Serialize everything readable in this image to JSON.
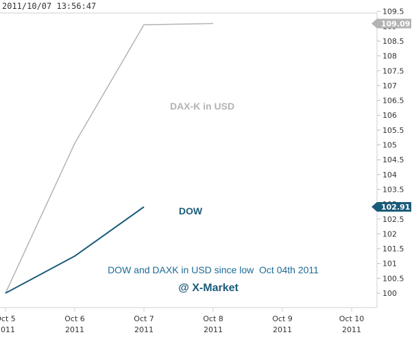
{
  "timestamp": "2011/10/07 13:56:47",
  "chart_data": {
    "type": "line",
    "x": [
      "2011-10-05",
      "2011-10-06",
      "2011-10-07",
      "2011-10-08",
      "2011-10-09",
      "2011-10-10"
    ],
    "x_tick_labels": [
      {
        "date": "2011-10-05",
        "label": "Oct 5",
        "year": "2011"
      },
      {
        "date": "2011-10-06",
        "label": "Oct 6",
        "year": "2011"
      },
      {
        "date": "2011-10-07",
        "label": "Oct 7",
        "year": "2011"
      },
      {
        "date": "2011-10-08",
        "label": "Oct 8",
        "year": "2011"
      },
      {
        "date": "2011-10-09",
        "label": "Oct 9",
        "year": "2011"
      },
      {
        "date": "2011-10-10",
        "label": "Oct 10",
        "year": "2011"
      }
    ],
    "y_ticks": [
      "109.5",
      "109",
      "108.5",
      "108",
      "107.5",
      "107",
      "106.5",
      "106",
      "105.5",
      "105",
      "104.5",
      "104",
      "103.5",
      "103",
      "102.5",
      "102",
      "101.5",
      "101",
      "100.5",
      "100"
    ],
    "ylim": [
      99.7,
      109.6
    ],
    "series": [
      {
        "name": "DAX-K in USD",
        "color": "#b3b3b3",
        "points": [
          {
            "x": "2011-10-05",
            "y": 100.0
          },
          {
            "x": "2011-10-06",
            "y": 105.05
          },
          {
            "x": "2011-10-07",
            "y": 109.05
          },
          {
            "x": "2011-10-08",
            "y": 109.09
          }
        ],
        "last_value_label": "109.09",
        "label_color": "#b3b3b3"
      },
      {
        "name": "DOW",
        "color": "#1b5b7a",
        "points": [
          {
            "x": "2011-10-05",
            "y": 100.0
          },
          {
            "x": "2011-10-06",
            "y": 101.25
          },
          {
            "x": "2011-10-07",
            "y": 102.91
          }
        ],
        "last_value_label": "102.91",
        "label_color": "#1b5b7a"
      }
    ],
    "annotations": {
      "subtitle": "DOW and DAXK in USD since low  Oct 04th 2011",
      "source": "@ X-Market"
    },
    "grid": false
  }
}
